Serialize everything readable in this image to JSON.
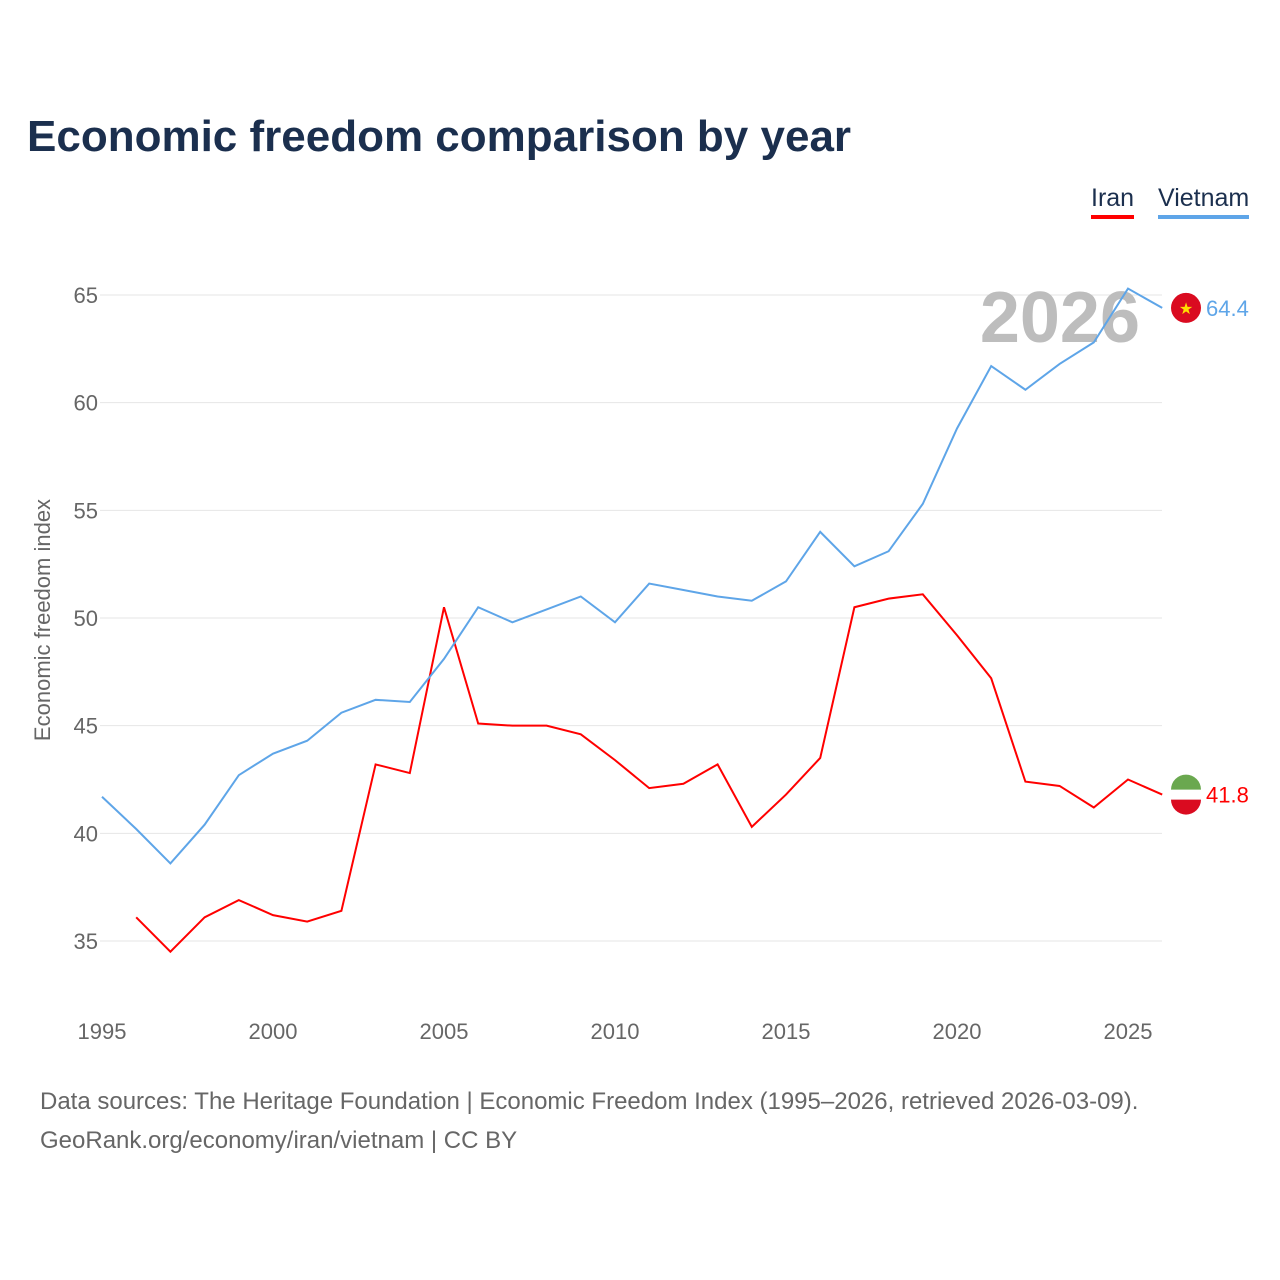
{
  "chart_data": {
    "type": "line",
    "title": "Economic freedom comparison by year",
    "xlabel": "",
    "ylabel": "Economic freedom index",
    "xlim": [
      1995,
      2026
    ],
    "ylim": [
      32,
      67
    ],
    "xticks": [
      1995,
      2000,
      2005,
      2010,
      2015,
      2020,
      2025
    ],
    "yticks": [
      35,
      40,
      45,
      50,
      55,
      60,
      65
    ],
    "grid": true,
    "legend_placement": "top-right",
    "year_watermark": "2026",
    "series": [
      {
        "name": "Iran",
        "color": "#ff0000",
        "end_label": "41.8",
        "x": [
          1996,
          1997,
          1998,
          1999,
          2000,
          2001,
          2002,
          2003,
          2004,
          2005,
          2006,
          2007,
          2008,
          2009,
          2010,
          2011,
          2012,
          2013,
          2014,
          2015,
          2016,
          2017,
          2018,
          2019,
          2020,
          2021,
          2022,
          2023,
          2024,
          2025,
          2026
        ],
        "values": [
          36.1,
          34.5,
          36.1,
          36.9,
          36.2,
          35.9,
          36.4,
          43.2,
          42.8,
          50.5,
          45.1,
          45.0,
          45.0,
          44.6,
          43.4,
          42.1,
          42.3,
          43.2,
          40.3,
          41.8,
          43.5,
          50.5,
          50.9,
          51.1,
          49.2,
          47.2,
          42.4,
          42.2,
          41.2,
          42.5,
          41.8
        ]
      },
      {
        "name": "Vietnam",
        "color": "#5ea5e8",
        "end_label": "64.4",
        "x": [
          1995,
          1996,
          1997,
          1998,
          1999,
          2000,
          2001,
          2002,
          2003,
          2004,
          2005,
          2006,
          2007,
          2008,
          2009,
          2010,
          2011,
          2012,
          2013,
          2014,
          2015,
          2016,
          2017,
          2018,
          2019,
          2020,
          2021,
          2022,
          2023,
          2024,
          2025,
          2026
        ],
        "values": [
          41.7,
          40.2,
          38.6,
          40.4,
          42.7,
          43.7,
          44.3,
          45.6,
          46.2,
          46.1,
          48.1,
          50.5,
          49.8,
          50.4,
          51.0,
          49.8,
          51.6,
          51.3,
          51.0,
          50.8,
          51.7,
          54.0,
          52.4,
          53.1,
          55.3,
          58.8,
          61.7,
          60.6,
          61.8,
          62.8,
          65.3,
          64.4
        ]
      }
    ]
  },
  "footer": {
    "line1": "Data sources: The Heritage Foundation | Economic Freedom Index (1995–2026, retrieved 2026-03-09).",
    "line2": "GeoRank.org/economy/iran/vietnam | CC BY"
  }
}
